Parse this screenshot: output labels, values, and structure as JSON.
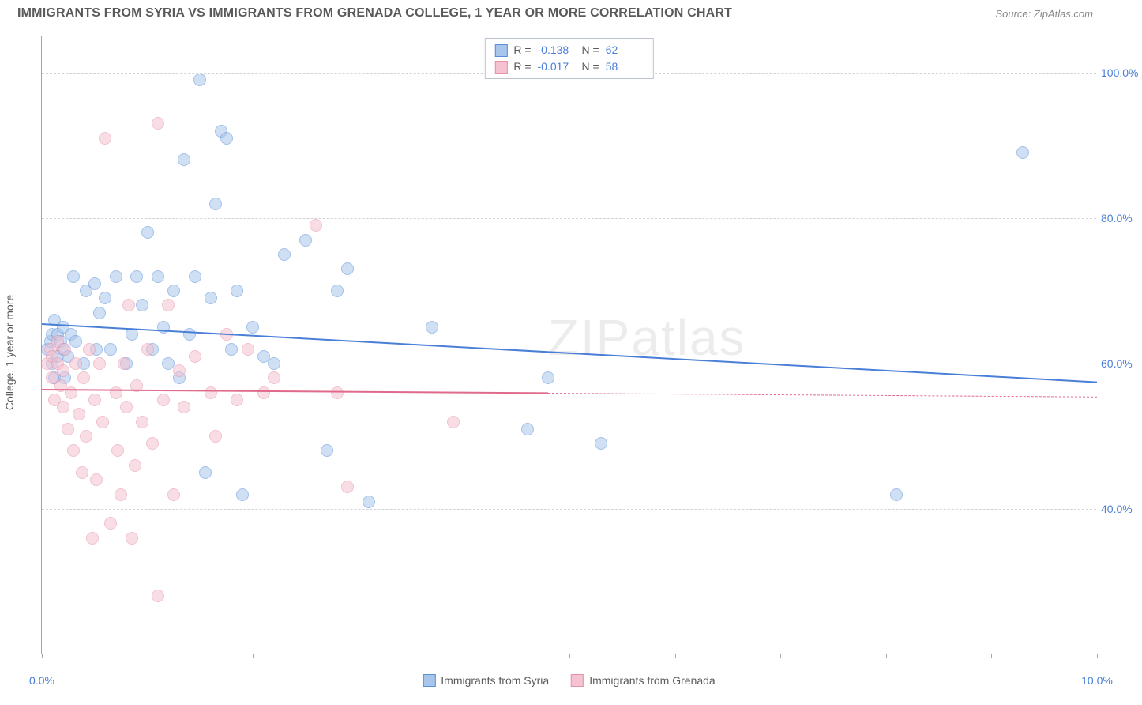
{
  "title": "IMMIGRANTS FROM SYRIA VS IMMIGRANTS FROM GRENADA COLLEGE, 1 YEAR OR MORE CORRELATION CHART",
  "source_label": "Source: ",
  "source_name": "ZipAtlas.com",
  "watermark": "ZIPatlas",
  "ylabel": "College, 1 year or more",
  "chart": {
    "type": "scatter",
    "xlim": [
      0,
      10
    ],
    "ylim": [
      20,
      105
    ],
    "yticks": [
      40,
      60,
      80,
      100
    ],
    "ytick_labels": [
      "40.0%",
      "60.0%",
      "80.0%",
      "100.0%"
    ],
    "xticks": [
      0,
      1,
      2,
      3,
      4,
      5,
      6,
      7,
      8,
      9,
      10
    ],
    "xtick_labels": {
      "0": "0.0%",
      "10": "10.0%"
    },
    "grid_color": "#d0d4d8",
    "background": "#ffffff",
    "point_radius": 8,
    "point_opacity": 0.55,
    "point_stroke_opacity": 0.8
  },
  "series": [
    {
      "name": "Immigrants from Syria",
      "fill": "#a8c5ec",
      "stroke": "#5a8fd8",
      "line_color": "#4a7fd8",
      "R": "-0.138",
      "N": "62",
      "trend": {
        "x1": 0,
        "y1": 65.5,
        "x2": 10,
        "y2": 57.5,
        "solid_until_x": 10
      },
      "points": [
        [
          0.05,
          62
        ],
        [
          0.08,
          63
        ],
        [
          0.1,
          60
        ],
        [
          0.1,
          64
        ],
        [
          0.12,
          58
        ],
        [
          0.12,
          66
        ],
        [
          0.15,
          61
        ],
        [
          0.15,
          64
        ],
        [
          0.18,
          63
        ],
        [
          0.2,
          62
        ],
        [
          0.2,
          65
        ],
        [
          0.22,
          58
        ],
        [
          0.25,
          61
        ],
        [
          0.28,
          64
        ],
        [
          0.3,
          72
        ],
        [
          0.32,
          63
        ],
        [
          0.4,
          60
        ],
        [
          0.42,
          70
        ],
        [
          0.5,
          71
        ],
        [
          0.52,
          62
        ],
        [
          0.55,
          67
        ],
        [
          0.6,
          69
        ],
        [
          0.65,
          62
        ],
        [
          0.7,
          72
        ],
        [
          0.8,
          60
        ],
        [
          0.85,
          64
        ],
        [
          0.9,
          72
        ],
        [
          0.95,
          68
        ],
        [
          1.0,
          78
        ],
        [
          1.05,
          62
        ],
        [
          1.1,
          72
        ],
        [
          1.15,
          65
        ],
        [
          1.2,
          60
        ],
        [
          1.25,
          70
        ],
        [
          1.3,
          58
        ],
        [
          1.35,
          88
        ],
        [
          1.4,
          64
        ],
        [
          1.45,
          72
        ],
        [
          1.5,
          99
        ],
        [
          1.55,
          45
        ],
        [
          1.6,
          69
        ],
        [
          1.65,
          82
        ],
        [
          1.7,
          92
        ],
        [
          1.75,
          91
        ],
        [
          1.8,
          62
        ],
        [
          1.85,
          70
        ],
        [
          1.9,
          42
        ],
        [
          2.0,
          65
        ],
        [
          2.1,
          61
        ],
        [
          2.2,
          60
        ],
        [
          2.3,
          75
        ],
        [
          2.5,
          77
        ],
        [
          2.7,
          48
        ],
        [
          2.8,
          70
        ],
        [
          2.9,
          73
        ],
        [
          3.1,
          41
        ],
        [
          3.7,
          65
        ],
        [
          4.6,
          51
        ],
        [
          4.8,
          58
        ],
        [
          5.3,
          49
        ],
        [
          8.1,
          42
        ],
        [
          9.3,
          89
        ]
      ]
    },
    {
      "name": "Immigrants from Grenada",
      "fill": "#f5c2d1",
      "stroke": "#e88fa8",
      "line_color": "#e06a8c",
      "R": "-0.017",
      "N": "58",
      "trend": {
        "x1": 0,
        "y1": 56.5,
        "x2": 10,
        "y2": 55.5,
        "solid_until_x": 4.8
      },
      "points": [
        [
          0.05,
          60
        ],
        [
          0.08,
          62
        ],
        [
          0.1,
          58
        ],
        [
          0.1,
          61
        ],
        [
          0.12,
          55
        ],
        [
          0.15,
          60
        ],
        [
          0.15,
          63
        ],
        [
          0.18,
          57
        ],
        [
          0.2,
          54
        ],
        [
          0.2,
          59
        ],
        [
          0.22,
          62
        ],
        [
          0.25,
          51
        ],
        [
          0.28,
          56
        ],
        [
          0.3,
          48
        ],
        [
          0.32,
          60
        ],
        [
          0.35,
          53
        ],
        [
          0.38,
          45
        ],
        [
          0.4,
          58
        ],
        [
          0.42,
          50
        ],
        [
          0.45,
          62
        ],
        [
          0.48,
          36
        ],
        [
          0.5,
          55
        ],
        [
          0.52,
          44
        ],
        [
          0.55,
          60
        ],
        [
          0.58,
          52
        ],
        [
          0.6,
          91
        ],
        [
          0.65,
          38
        ],
        [
          0.7,
          56
        ],
        [
          0.72,
          48
        ],
        [
          0.75,
          42
        ],
        [
          0.78,
          60
        ],
        [
          0.8,
          54
        ],
        [
          0.82,
          68
        ],
        [
          0.85,
          36
        ],
        [
          0.88,
          46
        ],
        [
          0.9,
          57
        ],
        [
          0.95,
          52
        ],
        [
          1.0,
          62
        ],
        [
          1.05,
          49
        ],
        [
          1.1,
          28
        ],
        [
          1.1,
          93
        ],
        [
          1.15,
          55
        ],
        [
          1.2,
          68
        ],
        [
          1.25,
          42
        ],
        [
          1.3,
          59
        ],
        [
          1.35,
          54
        ],
        [
          1.45,
          61
        ],
        [
          1.6,
          56
        ],
        [
          1.65,
          50
        ],
        [
          1.75,
          64
        ],
        [
          1.85,
          55
        ],
        [
          1.95,
          62
        ],
        [
          2.1,
          56
        ],
        [
          2.2,
          58
        ],
        [
          2.6,
          79
        ],
        [
          2.8,
          56
        ],
        [
          2.9,
          43
        ],
        [
          3.9,
          52
        ]
      ]
    }
  ],
  "stats_labels": {
    "R": "R =",
    "N": "N ="
  }
}
